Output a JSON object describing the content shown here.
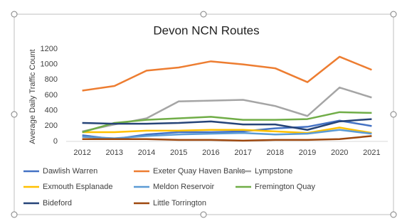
{
  "chart_data": {
    "type": "line",
    "title": "Devon NCN Routes",
    "y_label": "Average Daily Traffic Count",
    "categories": [
      "2012",
      "2013",
      "2014",
      "2015",
      "2016",
      "2017",
      "2018",
      "2019",
      "2020",
      "2021"
    ],
    "ylim": [
      0,
      1200
    ],
    "yticks": [
      0,
      200,
      400,
      600,
      800,
      1000,
      1200
    ],
    "grid": false,
    "series": [
      {
        "name": "Dawlish Warren",
        "color": "#4472c4",
        "values": [
          80,
          30,
          90,
          120,
          120,
          130,
          170,
          190,
          270,
          200
        ]
      },
      {
        "name": "Exeter Quay Haven Banks",
        "color": "#ed7d31",
        "values": [
          660,
          720,
          920,
          960,
          1040,
          1000,
          950,
          770,
          1100,
          930
        ]
      },
      {
        "name": "Lympstone",
        "color": "#a5a5a5",
        "values": [
          130,
          220,
          300,
          520,
          530,
          540,
          460,
          330,
          700,
          570
        ]
      },
      {
        "name": "Exmouth Esplanade",
        "color": "#ffc000",
        "values": [
          120,
          120,
          140,
          140,
          150,
          150,
          130,
          110,
          180,
          110
        ]
      },
      {
        "name": "Meldon Reservoir",
        "color": "#5b9bd5",
        "values": [
          60,
          40,
          70,
          90,
          100,
          110,
          90,
          100,
          150,
          100
        ]
      },
      {
        "name": "Fremington Quay",
        "color": "#70ad47",
        "values": [
          120,
          240,
          280,
          300,
          320,
          280,
          280,
          290,
          380,
          370
        ]
      },
      {
        "name": "Bideford",
        "color": "#264478",
        "values": [
          240,
          230,
          230,
          240,
          260,
          220,
          220,
          150,
          260,
          290
        ]
      },
      {
        "name": "Little Torrington",
        "color": "#9e480e",
        "values": [
          30,
          30,
          30,
          20,
          20,
          10,
          20,
          20,
          30,
          70
        ]
      }
    ]
  }
}
